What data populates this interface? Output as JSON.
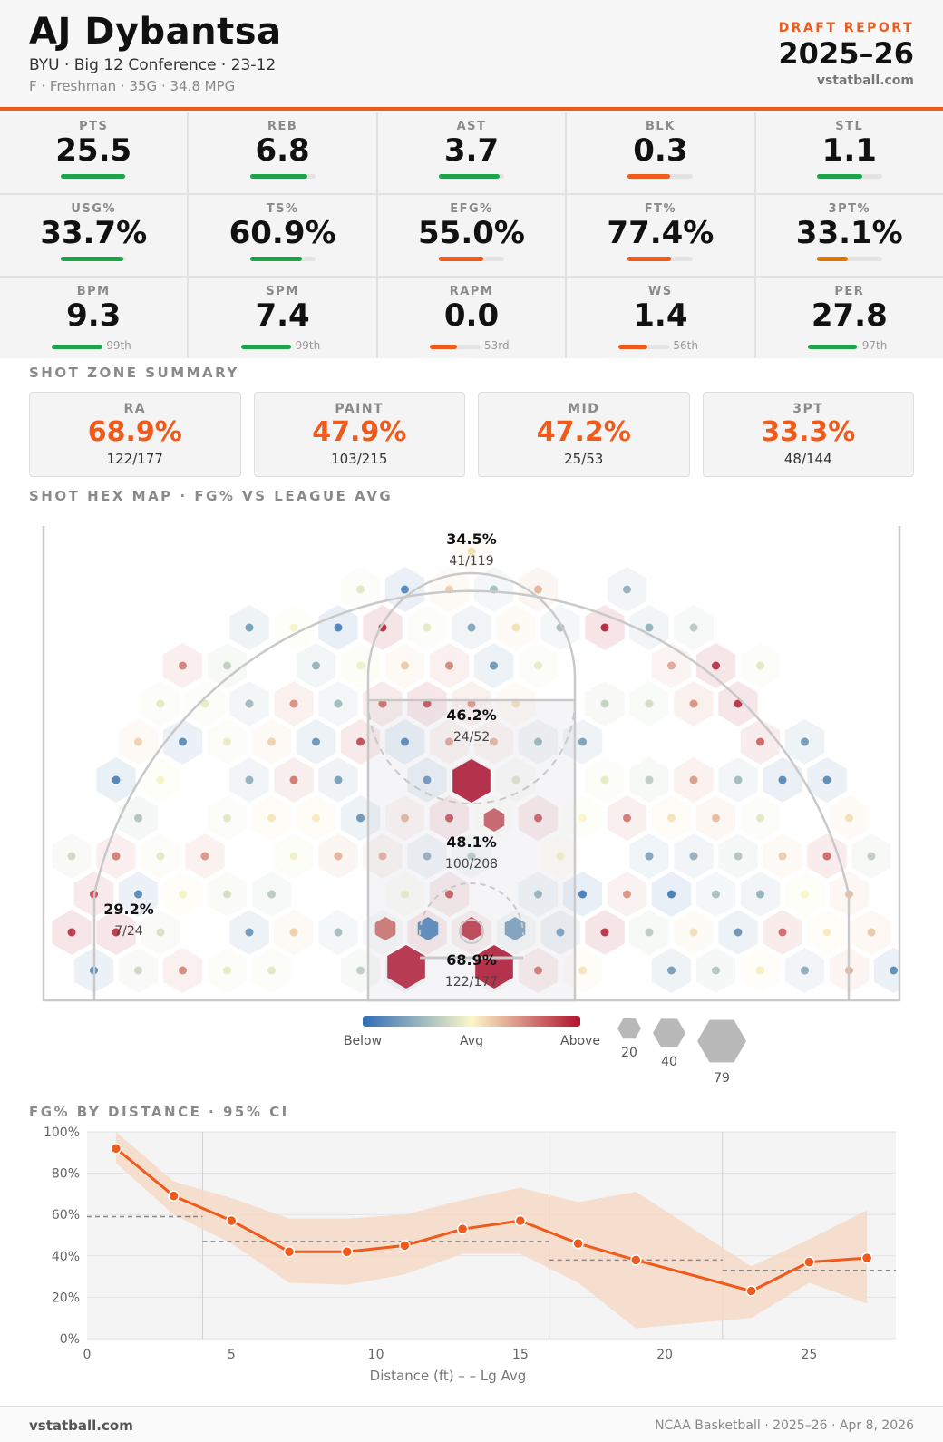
{
  "header": {
    "player_name": "AJ Dybantsa",
    "team_line": "BYU · Big 12 Conference · 23-12",
    "bio_line": "F · Freshman · 35G · 34.8 MPG",
    "report_label": "DRAFT REPORT",
    "season": "2025–26",
    "site": "vstatball.com"
  },
  "colors": {
    "accent": "#f05a1a",
    "good": "#1fa34a",
    "mid": "#d97706",
    "low": "#f05a1a"
  },
  "stats": [
    {
      "label": "PTS",
      "value": "25.5",
      "bar": 0.98,
      "color": "#1fa34a"
    },
    {
      "label": "REB",
      "value": "6.8",
      "bar": 0.88,
      "color": "#1fa34a"
    },
    {
      "label": "AST",
      "value": "3.7",
      "bar": 0.93,
      "color": "#1fa34a"
    },
    {
      "label": "BLK",
      "value": "0.3",
      "bar": 0.65,
      "color": "#f05a1a"
    },
    {
      "label": "STL",
      "value": "1.1",
      "bar": 0.7,
      "color": "#1fa34a"
    },
    {
      "label": "USG%",
      "value": "33.7%",
      "bar": 0.95,
      "color": "#1fa34a"
    },
    {
      "label": "TS%",
      "value": "60.9%",
      "bar": 0.8,
      "color": "#1fa34a"
    },
    {
      "label": "EFG%",
      "value": "55.0%",
      "bar": 0.68,
      "color": "#f05a1a"
    },
    {
      "label": "FT%",
      "value": "77.4%",
      "bar": 0.66,
      "color": "#f05a1a"
    },
    {
      "label": "3PT%",
      "value": "33.1%",
      "bar": 0.47,
      "color": "#d97706"
    },
    {
      "label": "BPM",
      "value": "9.3",
      "bar": 0.99,
      "color": "#1fa34a",
      "pctile": "99th"
    },
    {
      "label": "SPM",
      "value": "7.4",
      "bar": 0.99,
      "color": "#1fa34a",
      "pctile": "99th"
    },
    {
      "label": "RAPM",
      "value": "0.0",
      "bar": 0.53,
      "color": "#f05a1a",
      "pctile": "53rd"
    },
    {
      "label": "WS",
      "value": "1.4",
      "bar": 0.56,
      "color": "#f05a1a",
      "pctile": "56th"
    },
    {
      "label": "PER",
      "value": "27.8",
      "bar": 0.97,
      "color": "#1fa34a",
      "pctile": "97th"
    }
  ],
  "zone_section": {
    "title": "SHOT ZONE SUMMARY",
    "zones": [
      {
        "label": "RA",
        "pct": "68.9%",
        "count": "122/177"
      },
      {
        "label": "PAINT",
        "pct": "47.9%",
        "count": "103/215"
      },
      {
        "label": "MID",
        "pct": "47.2%",
        "count": "25/53"
      },
      {
        "label": "3PT",
        "pct": "33.3%",
        "count": "48/144"
      }
    ]
  },
  "hex_section": {
    "title": "SHOT HEX MAP · FG% VS LEAGUE AVG",
    "zone_labels": [
      {
        "pct": "34.5%",
        "count": "41/119"
      },
      {
        "pct": "46.2%",
        "count": "24/52"
      },
      {
        "pct": "48.1%",
        "count": "100/208"
      },
      {
        "pct": "29.2%",
        "count": "7/24"
      },
      {
        "pct": "68.9%",
        "count": "122/177"
      }
    ],
    "legend": {
      "below": "Below",
      "avg": "Avg",
      "above": "Above",
      "size_labels": [
        "20",
        "40",
        "79"
      ],
      "color_below": "#2f6db5",
      "color_avg": "#fbf7c9",
      "color_above": "#b0122e"
    }
  },
  "dist_section": {
    "title": "FG% BY DISTANCE · 95% CI"
  },
  "chart_data": {
    "type": "line",
    "title": "FG% BY DISTANCE · 95% CI",
    "xlabel": "Distance (ft) – – Lg Avg",
    "ylabel": "",
    "xlim": [
      0,
      28
    ],
    "ylim": [
      0,
      100
    ],
    "x_ticks": [
      "0",
      "5",
      "10",
      "15",
      "20",
      "25"
    ],
    "y_ticks": [
      "0%",
      "20%",
      "40%",
      "60%",
      "80%",
      "100%"
    ],
    "grid": true,
    "x": [
      1,
      3,
      5,
      7,
      9,
      11,
      13,
      15,
      17,
      19,
      23,
      25,
      27
    ],
    "series": [
      {
        "values": [
          92,
          69,
          57,
          42,
          42,
          45,
          53,
          57,
          46,
          38,
          23,
          37,
          39
        ]
      }
    ],
    "ci_upper": [
      100,
      76,
      68,
      58,
      58,
      60,
      67,
      73,
      66,
      71,
      35,
      48,
      62
    ],
    "ci_lower": [
      85,
      60,
      46,
      27,
      26,
      31,
      41,
      41,
      27,
      5,
      10,
      27,
      17
    ],
    "league_avg": [
      {
        "from": 0,
        "to": 4,
        "value": 59
      },
      {
        "from": 4,
        "to": 16,
        "value": 47
      },
      {
        "from": 16,
        "to": 22,
        "value": 38
      },
      {
        "from": 22,
        "to": 28,
        "value": 33
      }
    ],
    "dividers": [
      4,
      16,
      22
    ],
    "line_color": "#f05a1a",
    "band_color": "#f6d9c8"
  },
  "footer": {
    "left": "vstatball.com",
    "right": "NCAA Basketball · 2025–26 · Apr 8, 2026"
  }
}
